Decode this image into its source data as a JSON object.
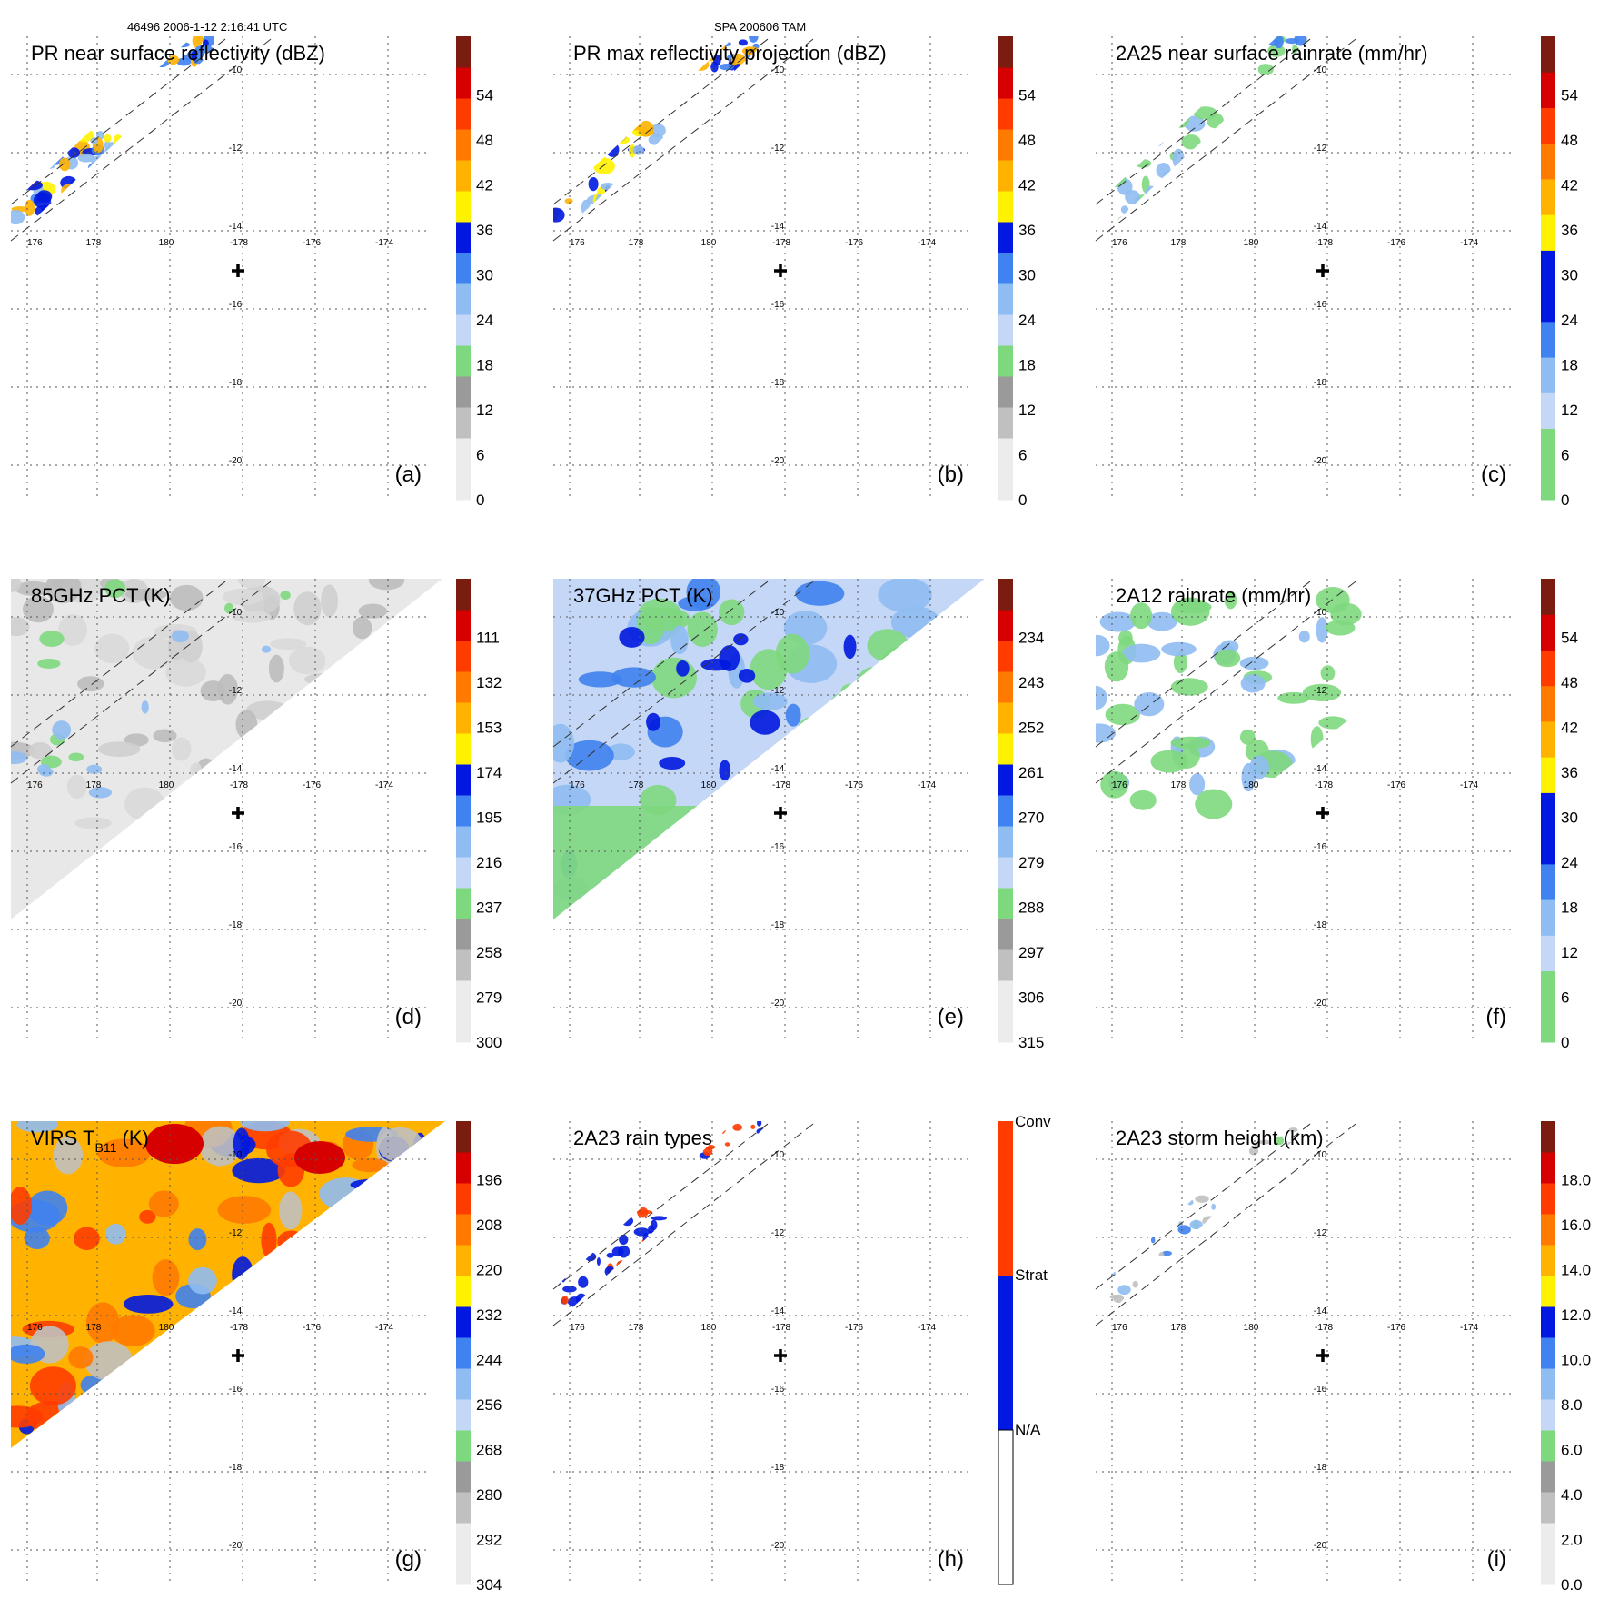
{
  "header": {
    "left": "46496 2006-1-12 2:16:41 UTC",
    "center": "SPA 200606 TAM"
  },
  "axes": {
    "lon_labels": [
      "176",
      "178",
      "180",
      "-178",
      "-176",
      "-174"
    ],
    "lat_labels": [
      "-10",
      "-12",
      "-14",
      "-16",
      "-18",
      "-20"
    ],
    "center_marker": "cross"
  },
  "colors": {
    "gray_light": "#ececec",
    "gray_mid": "#c0c0c0",
    "gray_dark": "#9a9a9a",
    "green": "#7ed87e",
    "blue_pale": "#c5d7f6",
    "blue_light": "#8fbdf2",
    "blue_mid": "#3f82f0",
    "blue_dark": "#0018e0",
    "yellow": "#fff200",
    "orange_light": "#ffb300",
    "orange": "#ff7a00",
    "red_orange": "#ff3c00",
    "red": "#d60000",
    "dark_red": "#7a1c10"
  },
  "chart_data": [
    {
      "id": "a",
      "type": "heatmap",
      "title": "PR near surface reflectivity (dBZ)",
      "panel_label": "(a)",
      "colorbar": {
        "type": "continuous",
        "labels": [
          "0",
          "6",
          "12",
          "18",
          "24",
          "30",
          "36",
          "42",
          "48",
          "54"
        ]
      },
      "swath": "pr"
    },
    {
      "id": "b",
      "type": "heatmap",
      "title": "PR max reflectivity projection (dBZ)",
      "panel_label": "(b)",
      "colorbar": {
        "type": "continuous",
        "labels": [
          "0",
          "6",
          "12",
          "18",
          "24",
          "30",
          "36",
          "42",
          "48",
          "54"
        ]
      },
      "swath": "pr"
    },
    {
      "id": "c",
      "type": "heatmap",
      "title": "2A25 near surface rainrate (mm/hr)",
      "panel_label": "(c)",
      "colorbar": {
        "type": "rain",
        "labels": [
          "0",
          "6",
          "12",
          "18",
          "24",
          "30",
          "36",
          "42",
          "48",
          "54"
        ]
      },
      "swath": "pr"
    },
    {
      "id": "d",
      "type": "heatmap",
      "title": "85GHz PCT (K)",
      "panel_label": "(d)",
      "colorbar": {
        "type": "continuous",
        "labels": [
          "300",
          "279",
          "258",
          "237",
          "216",
          "195",
          "174",
          "153",
          "132",
          "111"
        ]
      },
      "swath": "tmi"
    },
    {
      "id": "e",
      "type": "heatmap",
      "title": "37GHz PCT (K)",
      "panel_label": "(e)",
      "colorbar": {
        "type": "continuous",
        "labels": [
          "315",
          "306",
          "297",
          "288",
          "279",
          "270",
          "261",
          "252",
          "243",
          "234"
        ]
      },
      "swath": "tmi"
    },
    {
      "id": "f",
      "type": "heatmap",
      "title": "2A12 rainrate (mm/hr)",
      "panel_label": "(f)",
      "colorbar": {
        "type": "rain",
        "labels": [
          "0",
          "6",
          "12",
          "18",
          "24",
          "30",
          "36",
          "42",
          "48",
          "54"
        ]
      },
      "swath": "tmi"
    },
    {
      "id": "g",
      "type": "heatmap",
      "title": "VIRS T",
      "title_sub": "B11",
      "title_tail": " (K)",
      "panel_label": "(g)",
      "colorbar": {
        "type": "continuous",
        "labels": [
          "304",
          "292",
          "280",
          "268",
          "256",
          "244",
          "232",
          "220",
          "208",
          "196"
        ]
      },
      "swath": "virs"
    },
    {
      "id": "h",
      "type": "heatmap",
      "title": "2A23 rain types",
      "panel_label": "(h)",
      "colorbar": {
        "type": "category",
        "labels": [
          "N/A",
          "Strat",
          "Conv"
        ]
      },
      "swath": "pr"
    },
    {
      "id": "i",
      "type": "heatmap",
      "title": "2A23 storm height (km)",
      "panel_label": "(i)",
      "colorbar": {
        "type": "continuous",
        "labels": [
          "0.0",
          "2.0",
          "4.0",
          "6.0",
          "8.0",
          "10.0",
          "12.0",
          "14.0",
          "16.0",
          "18.0"
        ]
      },
      "swath": "pr"
    }
  ]
}
